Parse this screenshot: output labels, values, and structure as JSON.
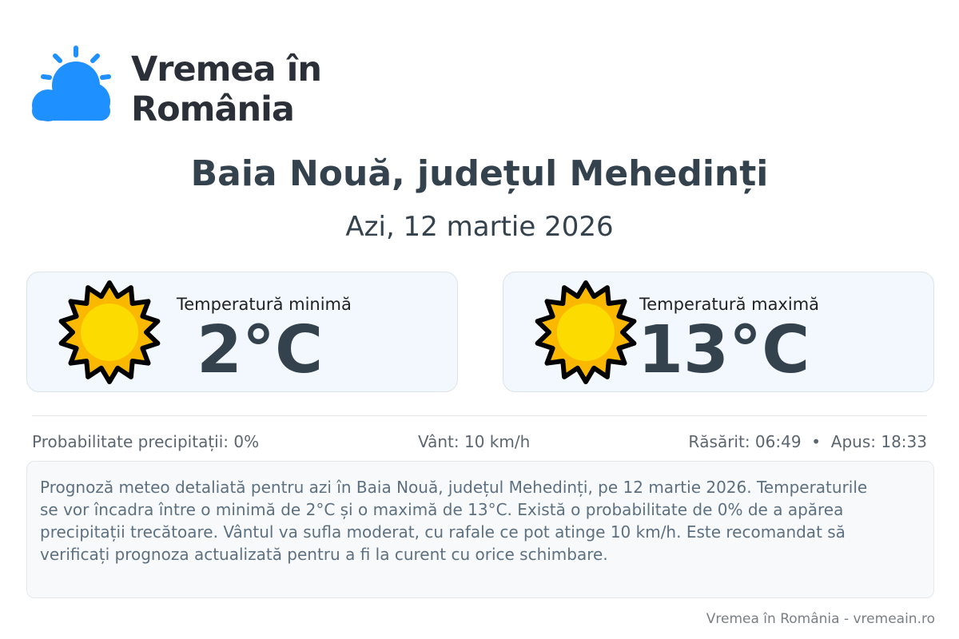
{
  "logo": {
    "text": "Vremea în România",
    "color": "#1e90ff"
  },
  "header": {
    "title": "Baia Nouă, județul Mehedinți",
    "date": "Azi, 12 martie 2026"
  },
  "cards": [
    {
      "label": "Temperatură minimă",
      "value": "2°C",
      "icon": "sun-icon"
    },
    {
      "label": "Temperatură maximă",
      "value": "13°C",
      "icon": "sun-icon"
    }
  ],
  "details": {
    "precip": "Probabilitate precipitații: 0%",
    "wind": "Vânt: 10 km/h",
    "sun": "Răsărit: 06:49  •  Apus: 18:33"
  },
  "description": "Prognoză meteo detaliată pentru azi în Baia Nouă, județul Mehedinți, pe 12 martie 2026. Temperaturile se vor încadra între o minimă de 2°C și o maximă de 13°C. Există o probabilitate de 0% de a apărea precipitații trecătoare. Vântul va sufla moderat, cu rafale ce pot atinge 10 km/h. Este recomandat să verificați prognoza actualizată pentru a fi la curent cu orice schimbare.",
  "footer": "Vremea în România - vremeain.ro"
}
